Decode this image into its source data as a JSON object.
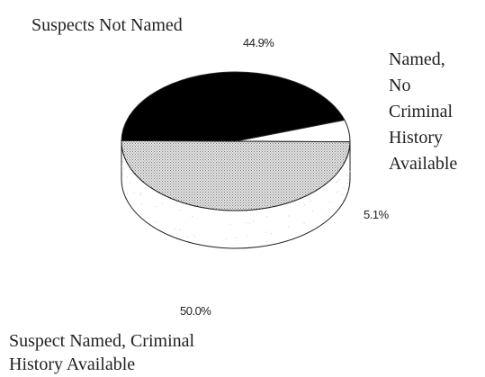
{
  "chart_data": {
    "type": "pie",
    "style": "3d",
    "slices": [
      {
        "label_lines": [
          "Suspects Not Named"
        ],
        "value": 44.9,
        "value_label": "44.9%",
        "fill": "#000000"
      },
      {
        "label_lines": [
          "Named,",
          "No",
          "Criminal",
          "History",
          "Available"
        ],
        "value": 5.1,
        "value_label": "5.1%",
        "fill": "#ffffff"
      },
      {
        "label_lines": [
          "Suspect Named, Criminal",
          "History Available"
        ],
        "value": 50.0,
        "value_label": "50.0%",
        "fill": "#c8c8c8",
        "pattern": "stipple"
      }
    ],
    "colors": {
      "outline": "#222222",
      "stipple_dot": "#777777",
      "stipple_base": "#e6e6e6"
    }
  }
}
